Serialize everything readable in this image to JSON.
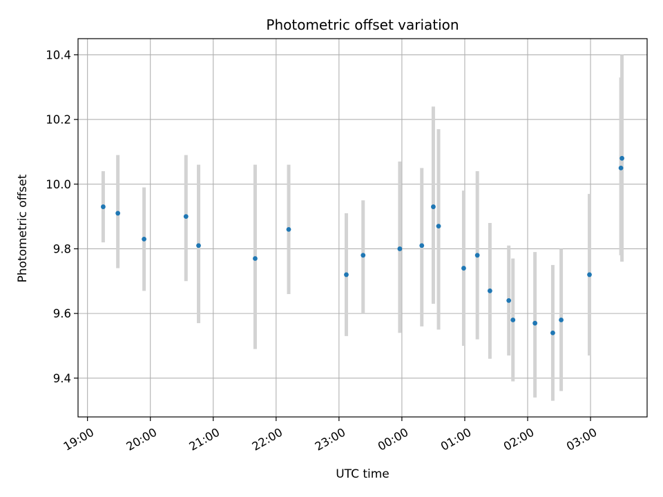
{
  "chart_data": {
    "type": "scatter",
    "title": "Photometric offset variation",
    "xlabel": "UTC time",
    "ylabel": "Photometric offset",
    "x_axis_kind": "time",
    "x_start_time": "19:00",
    "x_range_hours": [
      -0.15,
      8.9
    ],
    "ylim": [
      9.28,
      10.45
    ],
    "grid": true,
    "x_ticks": [
      "19:00",
      "20:00",
      "21:00",
      "22:00",
      "23:00",
      "00:00",
      "01:00",
      "02:00",
      "03:00"
    ],
    "y_ticks": [
      "9.4",
      "9.6",
      "9.8",
      "10.0",
      "10.2",
      "10.4"
    ],
    "marker_color": "#1f77b4",
    "errorbar_color": "#d3d3d3",
    "points": [
      {
        "t": "19:15",
        "y": 9.93,
        "err_low": 9.82,
        "err_high": 10.04
      },
      {
        "t": "19:29",
        "y": 9.91,
        "err_low": 9.74,
        "err_high": 10.09
      },
      {
        "t": "19:54",
        "y": 9.83,
        "err_low": 9.67,
        "err_high": 9.99
      },
      {
        "t": "20:34",
        "y": 9.9,
        "err_low": 9.7,
        "err_high": 10.09
      },
      {
        "t": "20:46",
        "y": 9.81,
        "err_low": 9.57,
        "err_high": 10.06
      },
      {
        "t": "21:40",
        "y": 9.77,
        "err_low": 9.49,
        "err_high": 10.06
      },
      {
        "t": "22:12",
        "y": 9.86,
        "err_low": 9.66,
        "err_high": 10.06
      },
      {
        "t": "23:07",
        "y": 9.72,
        "err_low": 9.53,
        "err_high": 9.91
      },
      {
        "t": "23:23",
        "y": 9.78,
        "err_low": 9.6,
        "err_high": 9.95
      },
      {
        "t": "23:58",
        "y": 9.8,
        "err_low": 9.54,
        "err_high": 10.07
      },
      {
        "t": "00:19",
        "y": 9.81,
        "err_low": 9.56,
        "err_high": 10.05
      },
      {
        "t": "00:30",
        "y": 9.93,
        "err_low": 9.63,
        "err_high": 10.24
      },
      {
        "t": "00:35",
        "y": 9.87,
        "err_low": 9.55,
        "err_high": 10.17
      },
      {
        "t": "00:59",
        "y": 9.74,
        "err_low": 9.5,
        "err_high": 9.98
      },
      {
        "t": "01:12",
        "y": 9.78,
        "err_low": 9.52,
        "err_high": 10.04
      },
      {
        "t": "01:24",
        "y": 9.67,
        "err_low": 9.46,
        "err_high": 9.88
      },
      {
        "t": "01:42",
        "y": 9.64,
        "err_low": 9.47,
        "err_high": 9.81
      },
      {
        "t": "01:46",
        "y": 9.58,
        "err_low": 9.39,
        "err_high": 9.77
      },
      {
        "t": "02:07",
        "y": 9.57,
        "err_low": 9.34,
        "err_high": 9.79
      },
      {
        "t": "02:24",
        "y": 9.54,
        "err_low": 9.33,
        "err_high": 9.75
      },
      {
        "t": "02:32",
        "y": 9.58,
        "err_low": 9.36,
        "err_high": 9.8
      },
      {
        "t": "02:59",
        "y": 9.72,
        "err_low": 9.47,
        "err_high": 9.97
      },
      {
        "t": "03:29",
        "y": 10.05,
        "err_low": 9.78,
        "err_high": 10.33
      },
      {
        "t": "03:30",
        "y": 10.08,
        "err_low": 9.76,
        "err_high": 10.4
      }
    ]
  }
}
